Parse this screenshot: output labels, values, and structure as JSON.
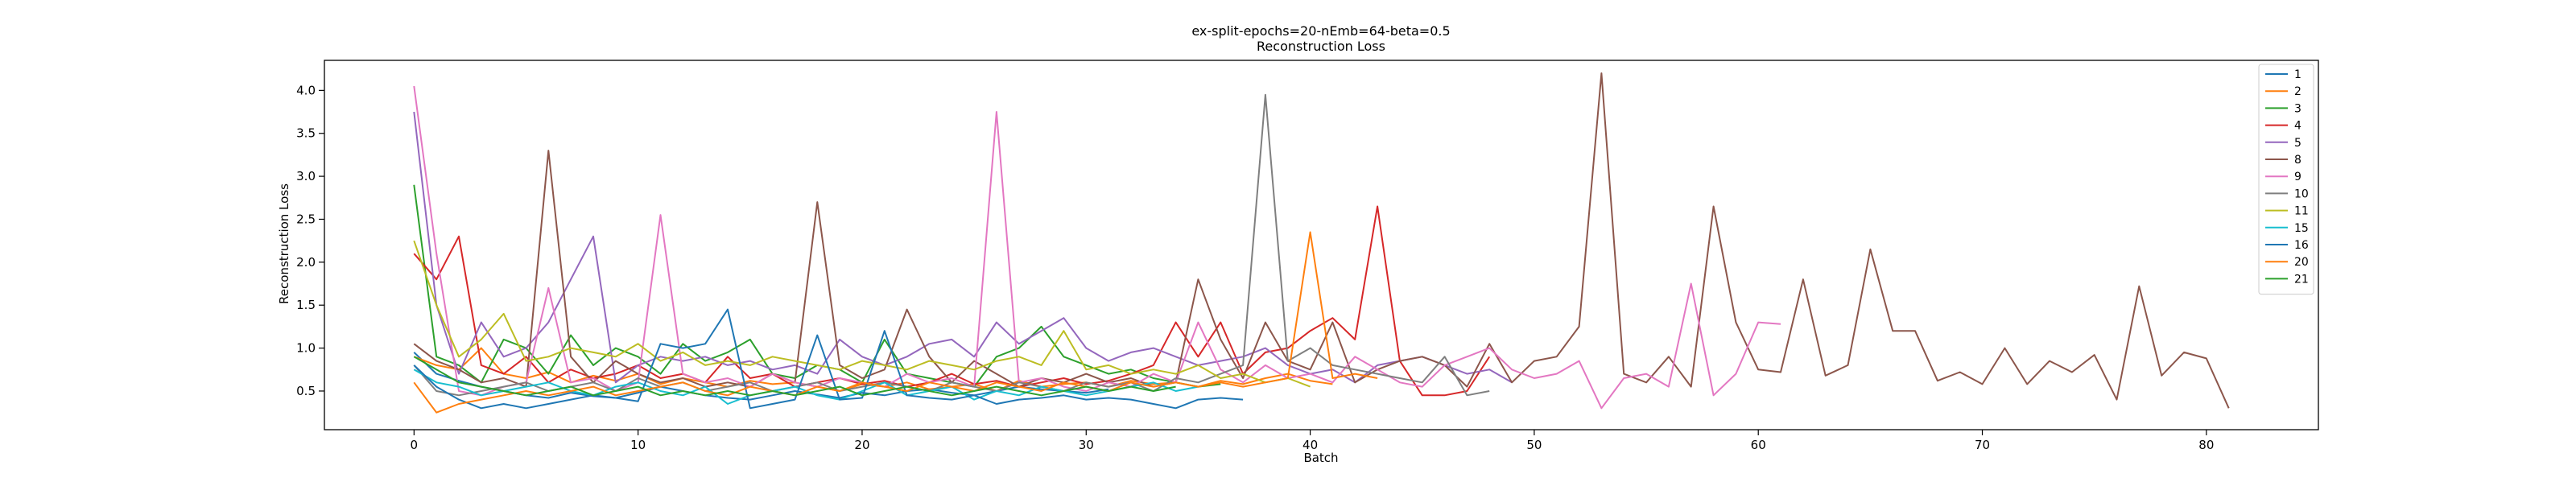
{
  "chart_data": {
    "type": "line",
    "title": "ex-split-epochs=20-nEmb=64-beta=0.5",
    "subtitle": "Reconstruction Loss",
    "xlabel": "Batch",
    "ylabel": "Reconstruction Loss",
    "xlim": [
      -4,
      85
    ],
    "ylim": [
      0.05,
      4.35
    ],
    "xticks": [
      0,
      10,
      20,
      30,
      40,
      50,
      60,
      70,
      80
    ],
    "yticks": [
      0.5,
      1.0,
      1.5,
      2.0,
      2.5,
      3.0,
      3.5,
      4.0
    ],
    "xtick_labels": [
      "0",
      "10",
      "20",
      "30",
      "40",
      "50",
      "60",
      "70",
      "80"
    ],
    "ytick_labels": [
      "0.5",
      "1.0",
      "1.5",
      "2.0",
      "2.5",
      "3.0",
      "3.5",
      "4.0"
    ],
    "legend": "top-right",
    "grid": false,
    "series": [
      {
        "name": "1",
        "color": "#1f77b4",
        "values": [
          0.95,
          0.7,
          0.62,
          0.55,
          0.5,
          0.45,
          0.42,
          0.48,
          0.44,
          0.42,
          0.48,
          0.55,
          0.5,
          0.45,
          0.42,
          0.4,
          0.45,
          0.5,
          0.46,
          0.42,
          0.48,
          0.45,
          0.5,
          0.52,
          0.48,
          0.45,
          0.5,
          0.55,
          0.52,
          0.5,
          0.48,
          0.52
        ]
      },
      {
        "name": "2",
        "color": "#ff7f0e",
        "values": [
          0.9,
          0.8,
          0.75,
          1.0,
          0.7,
          0.65,
          0.72,
          0.6,
          0.68,
          0.62,
          0.7,
          0.58,
          0.65,
          0.6,
          0.55,
          0.62,
          0.58,
          0.6,
          0.55,
          0.5,
          0.58,
          0.55,
          0.6,
          0.52,
          0.55,
          0.58,
          0.5,
          0.62,
          0.55,
          0.58,
          0.6,
          0.55,
          0.62,
          0.58,
          0.6,
          0.55,
          0.62,
          0.58,
          0.65,
          0.7,
          0.62,
          0.58
        ]
      },
      {
        "name": "3",
        "color": "#2ca02c",
        "values": [
          2.9,
          0.9,
          0.8,
          0.6,
          1.1,
          1.0,
          0.7,
          1.15,
          0.8,
          1.0,
          0.9,
          0.7,
          1.05,
          0.85,
          0.95,
          1.1,
          0.7,
          0.65,
          0.8,
          0.75,
          0.6,
          1.1,
          0.7,
          0.65,
          0.6,
          0.55,
          0.9,
          1.0,
          1.25,
          0.9,
          0.8,
          0.7,
          0.75,
          0.65,
          0.6,
          0.55,
          0.58
        ]
      },
      {
        "name": "4",
        "color": "#d62728",
        "values": [
          2.1,
          1.8,
          2.3,
          0.8,
          0.7,
          0.9,
          0.6,
          0.75,
          0.65,
          0.7,
          0.8,
          0.65,
          0.7,
          0.6,
          0.9,
          0.65,
          0.7,
          0.55,
          0.6,
          0.65,
          0.58,
          0.62,
          0.55,
          0.6,
          0.7,
          0.58,
          0.62,
          0.55,
          0.6,
          0.65,
          0.58,
          0.62,
          0.7,
          0.8,
          1.3,
          0.9,
          1.3,
          0.7,
          0.95,
          1.0,
          1.2,
          1.35,
          1.1,
          2.65,
          0.85,
          0.45,
          0.45,
          0.5,
          0.9
        ]
      },
      {
        "name": "5",
        "color": "#9467bd",
        "values": [
          3.75,
          1.5,
          0.7,
          1.3,
          0.9,
          1.0,
          1.3,
          1.8,
          2.3,
          0.6,
          0.8,
          0.9,
          0.85,
          0.9,
          0.8,
          0.85,
          0.75,
          0.8,
          0.7,
          1.1,
          0.9,
          0.8,
          0.9,
          1.05,
          1.1,
          0.9,
          1.3,
          1.05,
          1.2,
          1.35,
          1.0,
          0.85,
          0.95,
          1.0,
          0.9,
          0.8,
          0.85,
          0.9,
          1.0,
          0.8,
          0.7,
          0.75,
          0.6,
          0.8,
          0.85,
          0.9,
          0.8,
          0.7,
          0.75,
          0.6
        ]
      },
      {
        "name": "8",
        "color": "#8c564b",
        "values": [
          1.05,
          0.85,
          0.75,
          0.6,
          0.65,
          0.55,
          3.3,
          0.9,
          0.6,
          0.85,
          0.7,
          0.6,
          0.65,
          0.55,
          0.6,
          0.55,
          0.7,
          0.6,
          2.7,
          0.8,
          0.65,
          0.75,
          1.45,
          0.9,
          0.6,
          0.85,
          0.7,
          0.55,
          0.65,
          0.6,
          0.7,
          0.6,
          0.65,
          0.55,
          0.6,
          1.8,
          1.1,
          0.65,
          1.3,
          0.85,
          0.75,
          1.3,
          0.6,
          0.75,
          0.85,
          0.9,
          0.8,
          0.55,
          1.05,
          0.6,
          0.85,
          0.9,
          1.25,
          4.2,
          0.7,
          0.6,
          0.9,
          0.55,
          2.65,
          1.3,
          0.75,
          0.72,
          1.8,
          0.68,
          0.8,
          2.15,
          1.2,
          1.2,
          0.62,
          0.72,
          0.58,
          1.0,
          0.58,
          0.85,
          0.72,
          0.92,
          0.4,
          1.72,
          0.68,
          0.95,
          0.88,
          0.3
        ]
      },
      {
        "name": "9",
        "color": "#e377c2",
        "values": [
          4.05,
          2.1,
          0.5,
          0.45,
          0.55,
          0.6,
          1.7,
          0.6,
          0.65,
          0.5,
          0.6,
          2.55,
          0.7,
          0.6,
          0.65,
          0.55,
          0.7,
          0.6,
          0.55,
          0.65,
          0.6,
          0.55,
          0.7,
          0.6,
          0.65,
          0.55,
          3.75,
          0.6,
          0.65,
          0.55,
          0.5,
          0.6,
          0.55,
          0.7,
          0.6,
          1.3,
          0.75,
          0.6,
          0.8,
          0.65,
          0.7,
          0.6,
          0.9,
          0.75,
          0.6,
          0.55,
          0.8,
          0.9,
          1.0,
          0.75,
          0.65,
          0.7,
          0.85,
          0.3,
          0.65,
          0.7,
          0.55,
          1.75,
          0.45,
          0.7,
          1.3,
          1.28
        ]
      },
      {
        "name": "10",
        "color": "#7f7f7f",
        "values": [
          0.8,
          0.5,
          0.45,
          0.5,
          0.55,
          0.6,
          0.5,
          0.55,
          0.6,
          0.5,
          0.65,
          0.55,
          0.6,
          0.5,
          0.55,
          0.6,
          0.5,
          0.55,
          0.6,
          0.5,
          0.55,
          0.6,
          0.55,
          0.5,
          0.6,
          0.55,
          0.5,
          0.6,
          0.55,
          0.5,
          0.6,
          0.55,
          0.6,
          0.5,
          0.65,
          0.6,
          0.7,
          0.8,
          3.95,
          0.85,
          1.0,
          0.8,
          0.75,
          0.7,
          0.65,
          0.6,
          0.9,
          0.45,
          0.5
        ]
      },
      {
        "name": "11",
        "color": "#bcbd22",
        "values": [
          2.25,
          1.5,
          0.9,
          1.1,
          1.4,
          0.85,
          0.9,
          1.0,
          0.95,
          0.9,
          1.05,
          0.85,
          0.95,
          0.8,
          0.85,
          0.8,
          0.9,
          0.85,
          0.8,
          0.75,
          0.85,
          0.8,
          0.75,
          0.85,
          0.8,
          0.75,
          0.85,
          0.9,
          0.8,
          1.2,
          0.75,
          0.8,
          0.7,
          0.75,
          0.7,
          0.8,
          0.65,
          0.7,
          0.6,
          0.65,
          0.55
        ]
      },
      {
        "name": "15",
        "color": "#17becf",
        "values": [
          0.75,
          0.6,
          0.55,
          0.45,
          0.5,
          0.55,
          0.6,
          0.5,
          0.45,
          0.55,
          0.6,
          0.5,
          0.45,
          0.55,
          0.35,
          0.45,
          0.5,
          0.55,
          0.45,
          0.4,
          0.5,
          0.6,
          0.45,
          0.5,
          0.55,
          0.4,
          0.5,
          0.45,
          0.55,
          0.5,
          0.45,
          0.5,
          0.55,
          0.6,
          0.5,
          0.55
        ]
      },
      {
        "name": "16",
        "color": "#1f77b4",
        "values": [
          0.8,
          0.55,
          0.4,
          0.3,
          0.35,
          0.3,
          0.35,
          0.4,
          0.45,
          0.42,
          0.38,
          1.05,
          1.0,
          1.05,
          1.45,
          0.3,
          0.35,
          0.4,
          1.15,
          0.4,
          0.42,
          1.2,
          0.45,
          0.42,
          0.4,
          0.45,
          0.35,
          0.4,
          0.42,
          0.45,
          0.4,
          0.42,
          0.4,
          0.35,
          0.3,
          0.4,
          0.42,
          0.4
        ]
      },
      {
        "name": "20",
        "color": "#ff7f0e",
        "values": [
          0.6,
          0.25,
          0.35,
          0.4,
          0.45,
          0.5,
          0.45,
          0.5,
          0.55,
          0.45,
          0.5,
          0.55,
          0.6,
          0.5,
          0.45,
          0.55,
          0.5,
          0.45,
          0.55,
          0.5,
          0.6,
          0.55,
          0.5,
          0.6,
          0.55,
          0.5,
          0.6,
          0.55,
          0.5,
          0.6,
          0.55,
          0.5,
          0.6,
          0.55,
          0.6,
          0.55,
          0.6,
          0.55,
          0.6,
          0.65,
          2.35,
          0.65,
          0.7,
          0.65
        ]
      },
      {
        "name": "21",
        "color": "#2ca02c",
        "values": [
          0.9,
          0.75,
          0.6,
          0.55,
          0.5,
          0.45,
          0.5,
          0.55,
          0.45,
          0.5,
          0.55,
          0.45,
          0.5,
          0.45,
          0.5,
          0.45,
          0.5,
          0.45,
          0.5,
          0.55,
          0.45,
          0.5,
          0.55,
          0.5,
          0.45,
          0.5,
          0.55,
          0.5,
          0.45,
          0.5,
          0.55,
          0.5,
          0.55,
          0.5,
          0.55
        ]
      }
    ]
  }
}
